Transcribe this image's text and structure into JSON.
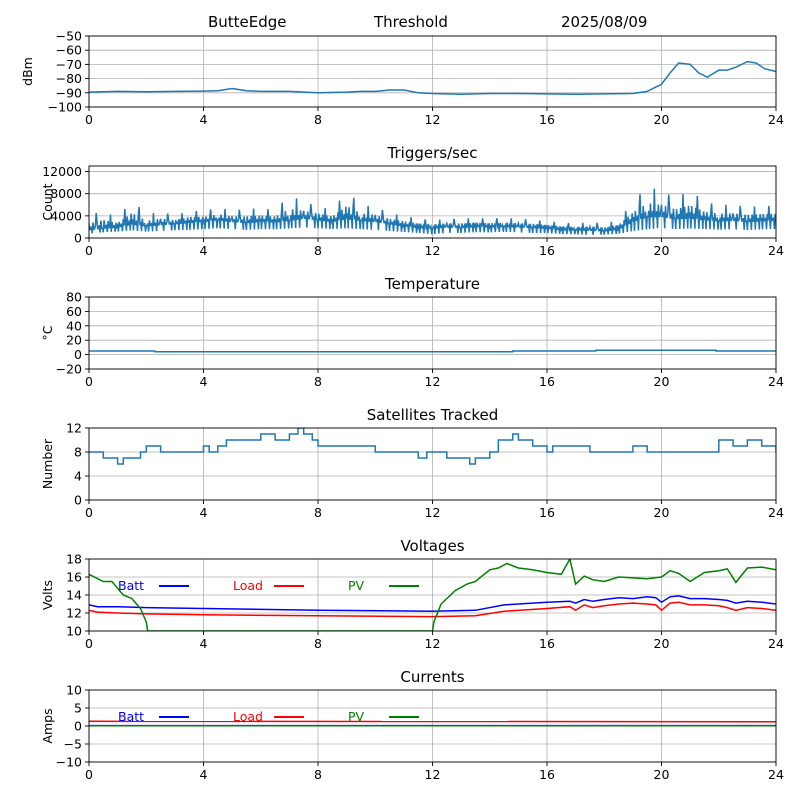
{
  "header": {
    "station": "ButteEdge",
    "label": "Threshold",
    "date": "2025/08/09"
  },
  "chart_data": [
    {
      "type": "line",
      "id": "dbm",
      "title": "",
      "ylabel": "dBm",
      "xlim": [
        0,
        24
      ],
      "ylim": [
        -100,
        -50
      ],
      "xticks": [
        0,
        4,
        8,
        12,
        16,
        20,
        24
      ],
      "yticks": [
        -100,
        -90,
        -80,
        -70,
        -60,
        -50
      ],
      "grid": true,
      "colors": [
        "#1f77b4"
      ],
      "series": [
        {
          "x": [
            0,
            1,
            2,
            3,
            4,
            4.5,
            5,
            5.5,
            6,
            7,
            8,
            9,
            9.5,
            10,
            10.5,
            11,
            11.5,
            12,
            13,
            14,
            15,
            16,
            17,
            18,
            19,
            19.5,
            19.8,
            20,
            20.3,
            20.6,
            21,
            21.3,
            21.6,
            22,
            22.3,
            22.6,
            23,
            23.3,
            23.6,
            24
          ],
          "y": [
            -89.5,
            -89,
            -89.2,
            -89,
            -88.8,
            -88.5,
            -87,
            -88.5,
            -89,
            -89,
            -90,
            -89.5,
            -89,
            -89,
            -88,
            -88,
            -90,
            -90.5,
            -91,
            -90.5,
            -90.5,
            -90.8,
            -91,
            -90.8,
            -90.5,
            -89,
            -86,
            -84,
            -76,
            -69,
            -70,
            -76,
            -79,
            -74,
            -74,
            -72,
            -68,
            -69,
            -73,
            -75
          ]
        }
      ]
    },
    {
      "type": "line",
      "id": "triggers",
      "title": "Triggers/sec",
      "ylabel": "Count",
      "xlim": [
        0,
        24
      ],
      "ylim": [
        0,
        13000
      ],
      "xticks": [
        0,
        4,
        8,
        12,
        16,
        20,
        24
      ],
      "yticks": [
        0,
        4000,
        8000,
        12000
      ],
      "grid": true,
      "colors": [
        "#1f77b4"
      ],
      "series": [
        {
          "x": [
            0,
            0.5,
            1,
            1.5,
            2,
            2.5,
            3,
            3.5,
            4,
            4.5,
            5,
            5.5,
            6,
            6.5,
            7,
            7.5,
            8,
            8.5,
            9,
            9.5,
            10,
            10.5,
            11,
            11.5,
            12,
            12.5,
            13,
            13.5,
            14,
            14.5,
            15,
            15.5,
            16,
            16.5,
            17,
            17.5,
            18,
            18.5,
            19,
            19.5,
            20,
            20.5,
            21,
            21.5,
            22,
            22.5,
            23,
            23.5,
            24
          ],
          "y": [
            1500,
            1800,
            2000,
            2500,
            2200,
            2400,
            2600,
            2800,
            3000,
            3300,
            3000,
            2800,
            3000,
            2900,
            3200,
            3600,
            3300,
            3000,
            3500,
            3200,
            3000,
            2600,
            2200,
            1900,
            1800,
            2000,
            1900,
            2100,
            2000,
            2100,
            2000,
            1900,
            1800,
            1500,
            1500,
            1400,
            1300,
            1600,
            3000,
            3800,
            3900,
            3500,
            3600,
            3300,
            3100,
            3200,
            3000,
            3100,
            3200
          ],
          "y_max": [
            4000,
            5000,
            3500,
            7000,
            4200,
            4800,
            4000,
            5000,
            4800,
            5500,
            5000,
            5200,
            5400,
            5000,
            7800,
            6500,
            5800,
            5000,
            8500,
            6000,
            5600,
            4500,
            4000,
            3500,
            3200,
            3400,
            3500,
            3600,
            3500,
            3600,
            3500,
            3300,
            3000,
            2800,
            2600,
            2900,
            2600,
            3300,
            6500,
            9300,
            8500,
            7200,
            8700,
            6500,
            6000,
            6000,
            5600,
            5800,
            5800
          ],
          "y_min": [
            500,
            700,
            800,
            900,
            700,
            800,
            900,
            900,
            1000,
            1100,
            1000,
            900,
            1000,
            1000,
            1100,
            1200,
            1100,
            1000,
            1000,
            900,
            800,
            700,
            600,
            500,
            200,
            500,
            500,
            600,
            600,
            700,
            600,
            500,
            500,
            400,
            300,
            200,
            300,
            400,
            500,
            600,
            900,
            800,
            900,
            900,
            800,
            900,
            800,
            900,
            1000
          ]
        }
      ]
    },
    {
      "type": "line",
      "id": "temperature",
      "title": "Temperature",
      "ylabel": "°C",
      "xlim": [
        0,
        24
      ],
      "ylim": [
        -20,
        80
      ],
      "xticks": [
        0,
        4,
        8,
        12,
        16,
        20,
        24
      ],
      "yticks": [
        -20,
        0,
        20,
        40,
        60,
        80
      ],
      "grid": true,
      "colors": [
        "#1f77b4"
      ],
      "series": [
        {
          "x": [
            0,
            2.3,
            2.3,
            14.8,
            14.8,
            17.7,
            17.7,
            21.9,
            21.9,
            24
          ],
          "y": [
            5,
            5,
            4,
            4,
            5,
            5,
            6,
            6,
            5,
            5
          ]
        }
      ]
    },
    {
      "type": "line",
      "id": "satellites",
      "title": "Satellites Tracked",
      "ylabel": "Number",
      "xlim": [
        0,
        24
      ],
      "ylim": [
        0,
        12
      ],
      "xticks": [
        0,
        4,
        8,
        12,
        16,
        20,
        24
      ],
      "yticks": [
        0,
        4,
        8,
        12
      ],
      "grid": true,
      "colors": [
        "#1f77b4"
      ],
      "step": true,
      "series": [
        {
          "x": [
            0,
            0.2,
            0.5,
            0.8,
            1,
            1.2,
            1.8,
            2,
            2.5,
            3,
            4,
            4.2,
            4.5,
            4.8,
            5,
            5.5,
            6,
            6.5,
            7,
            7.3,
            7.5,
            7.8,
            8,
            9,
            10,
            10.5,
            11,
            11.5,
            11.8,
            12,
            12.5,
            13,
            13.3,
            13.5,
            14,
            14.3,
            14.8,
            15,
            15.5,
            16,
            16.2,
            16.5,
            17,
            17.5,
            18,
            18.5,
            19,
            19.5,
            20,
            20.5,
            21,
            21.5,
            22,
            22.5,
            23,
            23.5,
            24
          ],
          "y": [
            8,
            8,
            7,
            7,
            6,
            7,
            8,
            9,
            8,
            8,
            9,
            8,
            9,
            10,
            10,
            10,
            11,
            10,
            11,
            12,
            11,
            10,
            9,
            9,
            8,
            8,
            8,
            7,
            8,
            8,
            7,
            7,
            6,
            7,
            8,
            10,
            11,
            10,
            9,
            8,
            9,
            9,
            9,
            8,
            8,
            8,
            9,
            8,
            8,
            8,
            8,
            8,
            10,
            9,
            10,
            9,
            8
          ]
        }
      ]
    },
    {
      "type": "line",
      "id": "voltages",
      "title": "Voltages",
      "ylabel": "Volts",
      "xlim": [
        0,
        24
      ],
      "ylim": [
        10,
        18
      ],
      "xticks": [
        0,
        4,
        8,
        12,
        16,
        20,
        24
      ],
      "yticks": [
        10,
        12,
        14,
        16,
        18
      ],
      "grid": true,
      "legend": "upper-left, horizontal",
      "series": [
        {
          "name": "Batt",
          "color": "#0000ff",
          "x": [
            0,
            0.3,
            1,
            2,
            4,
            8,
            12,
            13.5,
            14.5,
            16,
            16.8,
            17,
            17.3,
            17.6,
            18,
            18.5,
            19,
            19.5,
            19.8,
            20,
            20.3,
            20.6,
            21,
            21.5,
            22,
            22.3,
            22.6,
            23,
            23.5,
            24
          ],
          "y": [
            12.9,
            12.7,
            12.7,
            12.6,
            12.5,
            12.3,
            12.2,
            12.3,
            12.9,
            13.2,
            13.3,
            13.1,
            13.5,
            13.3,
            13.5,
            13.7,
            13.6,
            13.8,
            13.7,
            13.2,
            13.8,
            13.9,
            13.6,
            13.6,
            13.5,
            13.4,
            13.1,
            13.3,
            13.2,
            13.0
          ]
        },
        {
          "name": "Load",
          "color": "#ff0000",
          "x": [
            0,
            0.3,
            1,
            2,
            4,
            8,
            12,
            13.5,
            14.5,
            16,
            16.8,
            17,
            17.3,
            17.6,
            18,
            18.5,
            19,
            19.5,
            19.8,
            20,
            20.3,
            20.6,
            21,
            21.5,
            22,
            22.3,
            22.6,
            23,
            23.5,
            24
          ],
          "y": [
            12.3,
            12.1,
            12.0,
            11.9,
            11.8,
            11.7,
            11.6,
            11.7,
            12.2,
            12.5,
            12.7,
            12.3,
            12.9,
            12.6,
            12.8,
            13.0,
            13.1,
            13.0,
            12.9,
            12.3,
            13.1,
            13.2,
            12.9,
            12.9,
            12.8,
            12.6,
            12.3,
            12.6,
            12.5,
            12.3
          ]
        },
        {
          "name": "PV",
          "color": "#008000",
          "x": [
            0,
            0.5,
            0.8,
            1.2,
            1.5,
            1.8,
            2,
            2.05,
            12,
            12.05,
            12.3,
            12.8,
            13.2,
            13.5,
            14,
            14.3,
            14.6,
            15,
            15.5,
            16,
            16.5,
            16.8,
            17,
            17.3,
            17.6,
            18,
            18.5,
            19,
            19.5,
            20,
            20.3,
            20.6,
            21,
            21.5,
            22,
            22.3,
            22.6,
            23,
            23.5,
            24
          ],
          "y": [
            16.3,
            15.5,
            15.5,
            14.0,
            13.6,
            12.5,
            11.0,
            10.0,
            10.0,
            11.0,
            13.0,
            14.5,
            15.2,
            15.5,
            16.8,
            17.0,
            17.5,
            17.0,
            16.8,
            16.5,
            16.3,
            18.0,
            15.2,
            16.1,
            15.7,
            15.5,
            16.0,
            15.9,
            15.8,
            16.0,
            16.7,
            16.4,
            15.5,
            16.5,
            16.7,
            16.9,
            15.4,
            17.0,
            17.1,
            16.8
          ]
        }
      ]
    },
    {
      "type": "line",
      "id": "currents",
      "title": "Currents",
      "ylabel": "Amps",
      "xlim": [
        0,
        24
      ],
      "ylim": [
        -10,
        10
      ],
      "xticks": [
        0,
        4,
        8,
        12,
        16,
        20,
        24
      ],
      "yticks": [
        -10,
        -5,
        0,
        5,
        10
      ],
      "grid": true,
      "legend": "upper-left, horizontal",
      "series": [
        {
          "name": "Batt",
          "color": "#0000ff",
          "x": [
            0,
            24
          ],
          "y": [
            0.1,
            0.1
          ]
        },
        {
          "name": "Load",
          "color": "#ff0000",
          "x": [
            0,
            24
          ],
          "y": [
            1.3,
            1.2
          ]
        },
        {
          "name": "PV",
          "color": "#008000",
          "x": [
            0,
            24
          ],
          "y": [
            0.05,
            0.05
          ]
        }
      ]
    }
  ]
}
